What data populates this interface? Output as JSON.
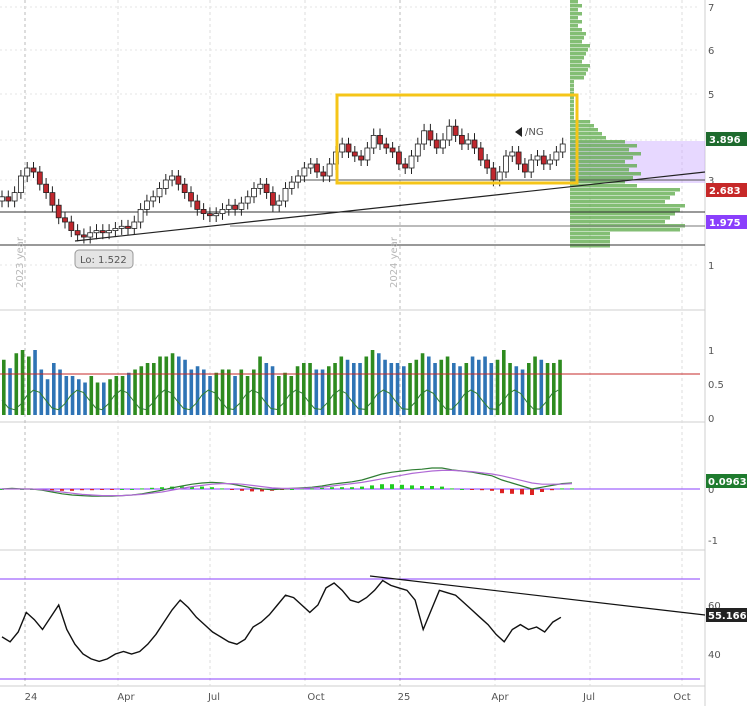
{
  "symbol": "/NG",
  "colors": {
    "up_candle": "#ffffff",
    "down_candle": "#c0272d",
    "volume_up": "#2e8b1f",
    "volume_down": "#2f74b5",
    "profile": "#5aa845",
    "value_area": "#c9a8ff",
    "highlight_box": "#f5c518",
    "price_tag": "#1e6b2e",
    "level_tag_red": "#c62828",
    "level_tag_purple": "#8a3ffc",
    "macd_tag": "#1e7b2e",
    "rsi_tag": "#222222",
    "macd_line": "#2e7d32",
    "signal_line": "#b06ad6",
    "rsi_band": "#8a3ffc"
  },
  "price_panel": {
    "y_ticks": [
      "7",
      "6",
      "5",
      "4",
      "3",
      "1"
    ],
    "last_price_tag": "3.896",
    "level_high_tag": "2.683",
    "level_low_tag": "1.975",
    "low_label": "Lo: 1.522",
    "year_labels": [
      "2023 year",
      "2024 year"
    ]
  },
  "volume_panel": {
    "y_ticks": [
      "1",
      "0.5",
      "0"
    ]
  },
  "macd_panel": {
    "y_ticks": [
      "0",
      "-1"
    ],
    "value_tag": "0.09632"
  },
  "rsi_panel": {
    "y_ticks": [
      "60",
      "40"
    ],
    "value_tag": "55.1662"
  },
  "x_axis": {
    "labels": [
      "24",
      "Apr",
      "Jul",
      "Oct",
      "25",
      "Apr",
      "Jul",
      "Oct"
    ]
  },
  "chart_data": {
    "type": "candlestick",
    "interval": "weekly",
    "price_series": {
      "name": "/NG",
      "close": [
        2.6,
        2.5,
        2.7,
        3.1,
        3.3,
        3.2,
        2.9,
        2.7,
        2.4,
        2.1,
        2.0,
        1.8,
        1.7,
        1.65,
        1.75,
        1.8,
        1.75,
        1.8,
        1.85,
        1.9,
        1.85,
        2.0,
        2.3,
        2.5,
        2.6,
        2.8,
        3.0,
        3.1,
        2.9,
        2.7,
        2.5,
        2.3,
        2.2,
        2.15,
        2.2,
        2.3,
        2.4,
        2.3,
        2.45,
        2.6,
        2.8,
        2.9,
        2.7,
        2.4,
        2.5,
        2.8,
        2.95,
        3.1,
        3.3,
        3.4,
        3.2,
        3.1,
        3.4,
        3.7,
        3.9,
        3.7,
        3.6,
        3.5,
        3.8,
        4.1,
        3.9,
        3.8,
        3.7,
        3.4,
        3.3,
        3.6,
        3.9,
        4.2,
        4.0,
        3.8,
        4.0,
        4.3,
        4.1,
        3.9,
        4.0,
        3.8,
        3.5,
        3.3,
        3.0,
        3.2,
        3.6,
        3.7,
        3.4,
        3.2,
        3.5,
        3.6,
        3.4,
        3.5,
        3.7,
        3.9
      ],
      "last": 3.896,
      "low": 1.522
    },
    "support_levels": [
      2.683,
      1.975
    ],
    "value_area": [
      3.0,
      4.0
    ],
    "highlight_range": {
      "price": [
        3.0,
        5.0
      ]
    },
    "volume": {
      "values": [
        0.85,
        0.72,
        0.95,
        1.0,
        0.9,
        1.0,
        0.7,
        0.55,
        0.8,
        0.7,
        0.6,
        0.6,
        0.55,
        0.5,
        0.6,
        0.5,
        0.5,
        0.55,
        0.6,
        0.6,
        0.65,
        0.7,
        0.75,
        0.8,
        0.8,
        0.9,
        0.9,
        0.95,
        0.9,
        0.85,
        0.7,
        0.75,
        0.7,
        0.6,
        0.65,
        0.7,
        0.7,
        0.6,
        0.7,
        0.6,
        0.7,
        0.9,
        0.8,
        0.75,
        0.6,
        0.65,
        0.6,
        0.75,
        0.8,
        0.8,
        0.7,
        0.7,
        0.75,
        0.8,
        0.9,
        0.85,
        0.8,
        0.8,
        0.9,
        1.0,
        0.95,
        0.85,
        0.8,
        0.8,
        0.75,
        0.8,
        0.85,
        0.95,
        0.9,
        0.8,
        0.85,
        0.9,
        0.8,
        0.75,
        0.8,
        0.9,
        0.85,
        0.9,
        0.8,
        0.85,
        1.0,
        0.8,
        0.75,
        0.7,
        0.8,
        0.9,
        0.85,
        0.8,
        0.8,
        0.85
      ],
      "reference": 0.65
    },
    "macd": {
      "macd": [
        0.0,
        0.01,
        0.0,
        0.0,
        -0.02,
        -0.05,
        -0.08,
        -0.1,
        -0.11,
        -0.12,
        -0.12,
        -0.12,
        -0.11,
        -0.1,
        -0.08,
        -0.05,
        -0.02,
        0.02,
        0.05,
        0.08,
        0.1,
        0.11,
        0.1,
        0.08,
        0.05,
        0.02,
        0.0,
        -0.01,
        0.0,
        0.01,
        0.02,
        0.03,
        0.05,
        0.08,
        0.1,
        0.12,
        0.15,
        0.2,
        0.25,
        0.28,
        0.3,
        0.32,
        0.33,
        0.35,
        0.35,
        0.32,
        0.3,
        0.28,
        0.25,
        0.22,
        0.15,
        0.1,
        0.05,
        0.0,
        0.03,
        0.06,
        0.09,
        0.1
      ],
      "signal": [
        0.0,
        0.0,
        0.0,
        0.0,
        -0.01,
        -0.03,
        -0.05,
        -0.07,
        -0.09,
        -0.1,
        -0.11,
        -0.11,
        -0.11,
        -0.1,
        -0.09,
        -0.07,
        -0.05,
        -0.02,
        0.01,
        0.04,
        0.06,
        0.08,
        0.09,
        0.09,
        0.08,
        0.06,
        0.04,
        0.02,
        0.01,
        0.01,
        0.01,
        0.02,
        0.03,
        0.05,
        0.07,
        0.09,
        0.11,
        0.14,
        0.17,
        0.2,
        0.23,
        0.26,
        0.28,
        0.3,
        0.31,
        0.31,
        0.3,
        0.29,
        0.27,
        0.25,
        0.22,
        0.18,
        0.14,
        0.1,
        0.08,
        0.08,
        0.08,
        0.09
      ],
      "last": 0.09632
    },
    "rsi": {
      "values": [
        47,
        45,
        49,
        57,
        54,
        50,
        55,
        60,
        50,
        44,
        40,
        38,
        37,
        38,
        40,
        41,
        40,
        41,
        44,
        48,
        53,
        58,
        62,
        59,
        55,
        52,
        49,
        47,
        45,
        44,
        46,
        51,
        53,
        56,
        60,
        64,
        63,
        60,
        57,
        60,
        67,
        69,
        66,
        62,
        61,
        63,
        66,
        70,
        68,
        67,
        66,
        62,
        50,
        58,
        66,
        65,
        64,
        61,
        58,
        55,
        52,
        48,
        45,
        50,
        52,
        50,
        51,
        49,
        53,
        55
      ],
      "last": 55.1662,
      "upper": 70,
      "lower": 30
    }
  }
}
